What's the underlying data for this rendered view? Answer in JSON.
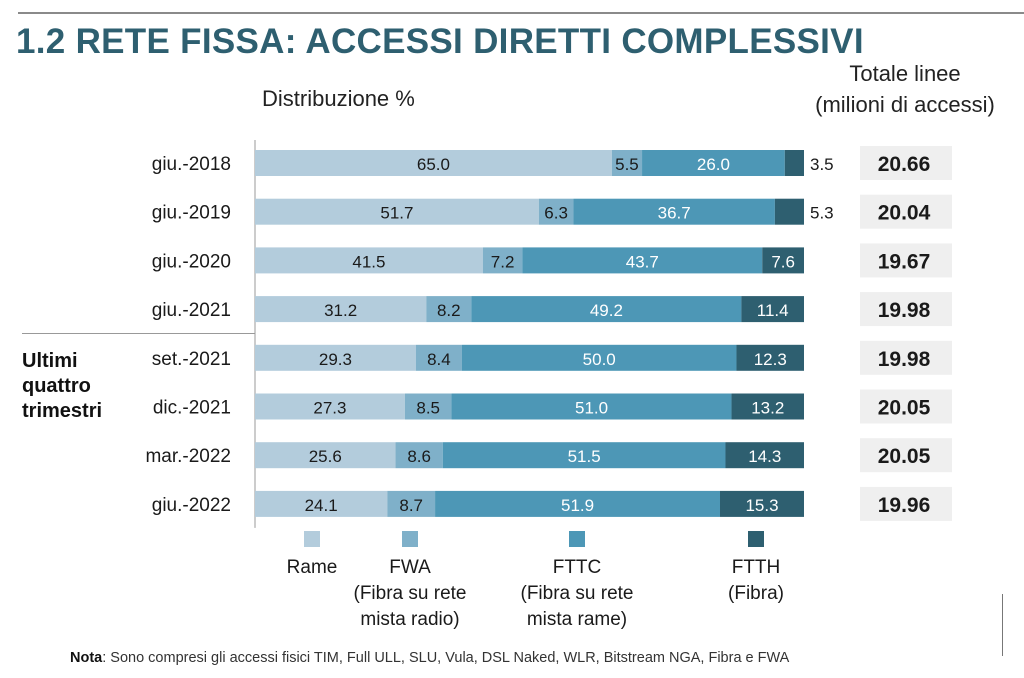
{
  "title": "1.2 RETE FISSA: ACCESSI DIRETTI COMPLESSIVI",
  "subtitle": "Distribuzione %",
  "totals_header": [
    "Totale linee",
    "(milioni di accessi)"
  ],
  "group_label": [
    "Ultimi",
    "quattro",
    "trimestri"
  ],
  "note": {
    "label": "Nota",
    "text": ": Sono compresi gli accessi fisici TIM, Full ULL, SLU, Vula, DSL Naked, WLR, Bitstream NGA, Fibra e FWA"
  },
  "chart_data": {
    "type": "bar",
    "orientation": "horizontal",
    "stacked": true,
    "categories": [
      "giu.-2018",
      "giu.-2019",
      "giu.-2020",
      "giu.-2021",
      "set.-2021",
      "dic.-2021",
      "mar.-2022",
      "giu.-2022"
    ],
    "series": [
      {
        "name": "Rame",
        "legend": [
          "Rame"
        ],
        "color": "#b3ccdc",
        "values": [
          65.0,
          51.7,
          41.5,
          31.2,
          29.3,
          27.3,
          25.6,
          24.1
        ],
        "labels": [
          "65.0",
          "51.7",
          "41.5",
          "31.2",
          "29.3",
          "27.3",
          "25.6",
          "24.1"
        ]
      },
      {
        "name": "FWA",
        "legend": [
          "FWA",
          "(Fibra su rete",
          "mista radio)"
        ],
        "color": "#7fb0c9",
        "values": [
          5.5,
          6.3,
          7.2,
          8.2,
          8.4,
          8.5,
          8.6,
          8.7
        ],
        "labels": [
          "5.5",
          "6.3",
          "7.2",
          "8.2",
          "8.4",
          "8.5",
          "8.6",
          "8.7"
        ]
      },
      {
        "name": "FTTC",
        "legend": [
          "FTTC",
          "(Fibra su rete",
          "mista rame)"
        ],
        "color": "#4d97b6",
        "values": [
          26.0,
          36.7,
          43.7,
          49.2,
          50.0,
          51.0,
          51.5,
          51.9
        ],
        "labels": [
          "26.0",
          "36.7",
          "43.7",
          "49.2",
          "50.0",
          "51.0",
          "51.5",
          "51.9"
        ]
      },
      {
        "name": "FTTH",
        "legend": [
          "FTTH",
          "(Fibra)"
        ],
        "color": "#2e5f70",
        "values": [
          3.5,
          5.3,
          7.6,
          11.4,
          12.3,
          13.2,
          14.3,
          15.3
        ],
        "labels": [
          "3.5",
          "5.3",
          "7.6",
          "11.4",
          "12.3",
          "13.2",
          "14.3",
          "15.3"
        ]
      }
    ],
    "totals": {
      "values": [
        20.66,
        20.04,
        19.67,
        19.98,
        19.98,
        20.05,
        20.05,
        19.96
      ],
      "labels": [
        "20.66",
        "20.04",
        "19.67",
        "19.98",
        "19.98",
        "20.05",
        "20.05",
        "19.96"
      ]
    },
    "xlim": [
      0,
      100
    ],
    "grid": false,
    "legend_position": "bottom"
  }
}
